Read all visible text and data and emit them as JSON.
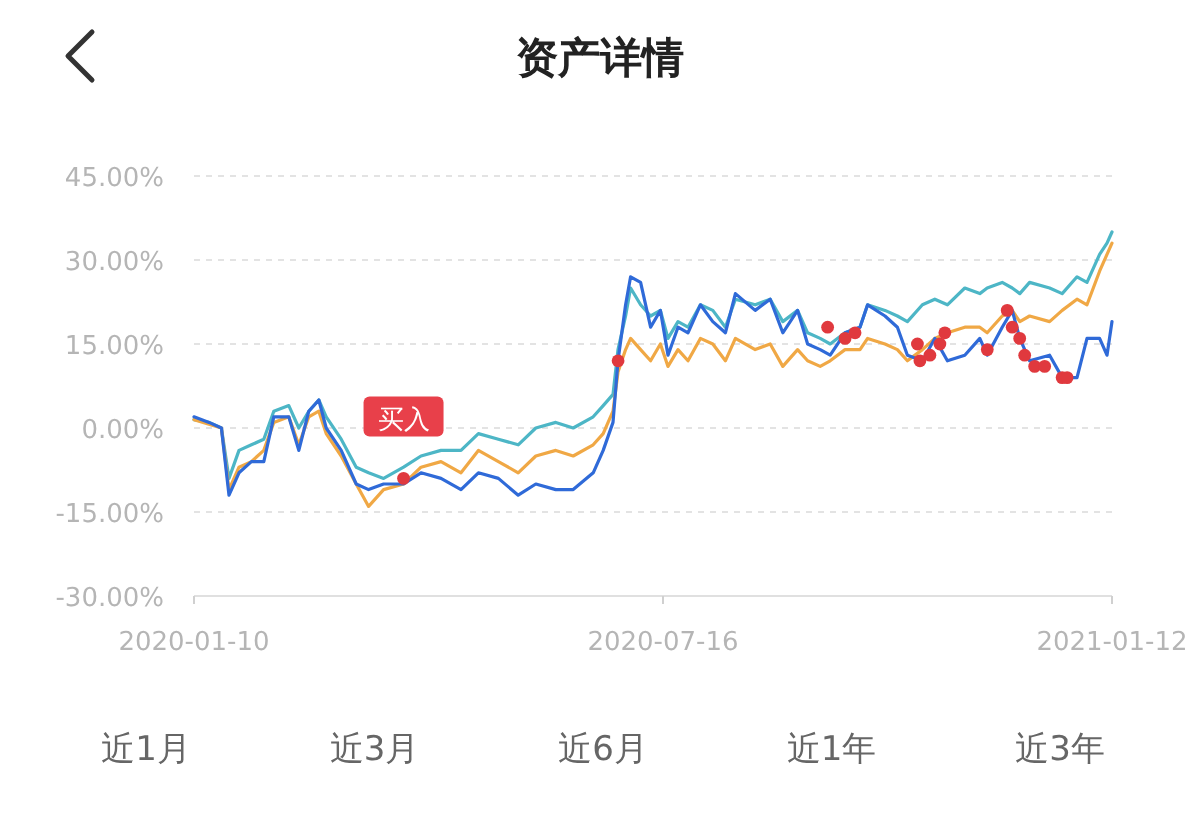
{
  "chart_data": {
    "type": "line",
    "title": "资产详情",
    "x": [
      "2020-01-10",
      "2020-01-16",
      "2020-01-21",
      "2020-01-24",
      "2020-01-28",
      "2020-02-02",
      "2020-02-07",
      "2020-02-11",
      "2020-02-17",
      "2020-02-21",
      "2020-02-25",
      "2020-02-29",
      "2020-03-03",
      "2020-03-09",
      "2020-03-15",
      "2020-03-20",
      "2020-03-26",
      "2020-04-03",
      "2020-04-10",
      "2020-04-18",
      "2020-04-26",
      "2020-05-03",
      "2020-05-11",
      "2020-05-19",
      "2020-05-26",
      "2020-06-03",
      "2020-06-10",
      "2020-06-18",
      "2020-06-22",
      "2020-06-26",
      "2020-06-28",
      "2020-07-01",
      "2020-07-03",
      "2020-07-07",
      "2020-07-11",
      "2020-07-15",
      "2020-07-18",
      "2020-07-22",
      "2020-07-26",
      "2020-07-31",
      "2020-08-05",
      "2020-08-10",
      "2020-08-14",
      "2020-08-22",
      "2020-08-28",
      "2020-09-02",
      "2020-09-08",
      "2020-09-12",
      "2020-09-17",
      "2020-09-21",
      "2020-09-27",
      "2020-10-03",
      "2020-10-06",
      "2020-10-13",
      "2020-10-18",
      "2020-10-22",
      "2020-10-28",
      "2020-11-02",
      "2020-11-07",
      "2020-11-14",
      "2020-11-20",
      "2020-11-23",
      "2020-11-29",
      "2020-12-03",
      "2020-12-06",
      "2020-12-10",
      "2020-12-18",
      "2020-12-23",
      "2020-12-29",
      "2021-01-02",
      "2021-01-07",
      "2021-01-10",
      "2021-01-12"
    ],
    "series": [
      {
        "color": "#4db6c6",
        "values": [
          1.5,
          1,
          0,
          -9,
          -4,
          -3,
          -2,
          3,
          4,
          0,
          3,
          5,
          2,
          -2,
          -7,
          -8,
          -9,
          -7,
          -5,
          -4,
          -4,
          -1,
          -2,
          -3,
          0,
          1,
          0,
          2,
          4,
          6,
          14,
          20,
          25,
          22,
          20,
          21,
          16,
          19,
          18,
          22,
          21,
          18,
          23,
          22,
          23,
          19,
          21,
          17,
          16,
          15,
          17,
          18,
          22,
          21,
          20,
          19,
          22,
          23,
          22,
          25,
          24,
          25,
          26,
          25,
          24,
          26,
          25,
          24,
          27,
          26,
          31,
          33,
          35
        ]
      },
      {
        "color": "#f0a845",
        "values": [
          1.5,
          null,
          0,
          -11,
          -7,
          -6,
          -4,
          1,
          2,
          -3,
          2,
          3,
          -1,
          -5,
          -10,
          -14,
          -11,
          -10,
          -7,
          -6,
          -8,
          -4,
          -6,
          -8,
          -5,
          -4,
          -5,
          -3,
          -1,
          3,
          10,
          14,
          16,
          14,
          12,
          15,
          11,
          14,
          12,
          16,
          15,
          12,
          16,
          14,
          15,
          11,
          14,
          12,
          11,
          12,
          14,
          14,
          16,
          15,
          14,
          12,
          14,
          16,
          17,
          18,
          18,
          17,
          20,
          21,
          19,
          20,
          19,
          21,
          23,
          22,
          28,
          31,
          33
        ]
      },
      {
        "color": "#2f6ad8",
        "values": [
          2,
          1,
          0,
          -12,
          -8,
          -6,
          -6,
          2,
          2,
          -4,
          3,
          5,
          0,
          -4,
          -10,
          -11,
          -10,
          -10,
          -8,
          -9,
          -11,
          -8,
          -9,
          -12,
          -10,
          -11,
          -11,
          -8,
          -4,
          1,
          12,
          22,
          27,
          26,
          18,
          21,
          13,
          18,
          17,
          22,
          19,
          17,
          24,
          21,
          23,
          17,
          21,
          15,
          14,
          13,
          17,
          18,
          22,
          20,
          18,
          13,
          12,
          16,
          12,
          13,
          16,
          13,
          18,
          21,
          16,
          12,
          13,
          9,
          9,
          16,
          16,
          13,
          19
        ]
      },
      {
        "type": "scatter",
        "marker": "circle",
        "color": "#e0393e",
        "x": [
          "2020-04-03",
          "2020-06-28",
          "2020-09-20",
          "2020-09-27",
          "2020-10-01",
          "2020-10-26",
          "2020-10-27",
          "2020-10-31",
          "2020-11-04",
          "2020-11-06",
          "2020-11-23",
          "2020-12-01",
          "2020-12-03",
          "2020-12-06",
          "2020-12-08",
          "2020-12-12",
          "2020-12-16",
          "2020-12-23",
          "2020-12-25"
        ],
        "values": [
          -9,
          12,
          18,
          16,
          17,
          15,
          12,
          13,
          15,
          17,
          14,
          21,
          18,
          16,
          13,
          11,
          11,
          9,
          9
        ]
      }
    ],
    "xlim": [
      "2020-01-10",
      "2021-01-12"
    ],
    "xticks": [
      {
        "value": "2020-01-10",
        "label": "2020-01-10"
      },
      {
        "value": "2020-07-16",
        "label": "2020-07-16"
      },
      {
        "value": "2021-01-12",
        "label": "2021-01-12"
      }
    ],
    "ylim": [
      -30,
      45
    ],
    "yticks": [
      {
        "value": -30,
        "label": "-30.00%"
      },
      {
        "value": -15,
        "label": "-15.00%"
      },
      {
        "value": 0,
        "label": "0.00%"
      },
      {
        "value": 15,
        "label": "15.00%"
      },
      {
        "value": 30,
        "label": "30.00%"
      },
      {
        "value": 45,
        "label": "45.00%"
      }
    ],
    "grid": "y",
    "line_style": "solid",
    "annotations": [
      {
        "text": "买入",
        "x": "2020-04-03",
        "y": -9
      },
      "近1月",
      "近3月",
      "近6月",
      "近1年",
      "近3年"
    ]
  }
}
